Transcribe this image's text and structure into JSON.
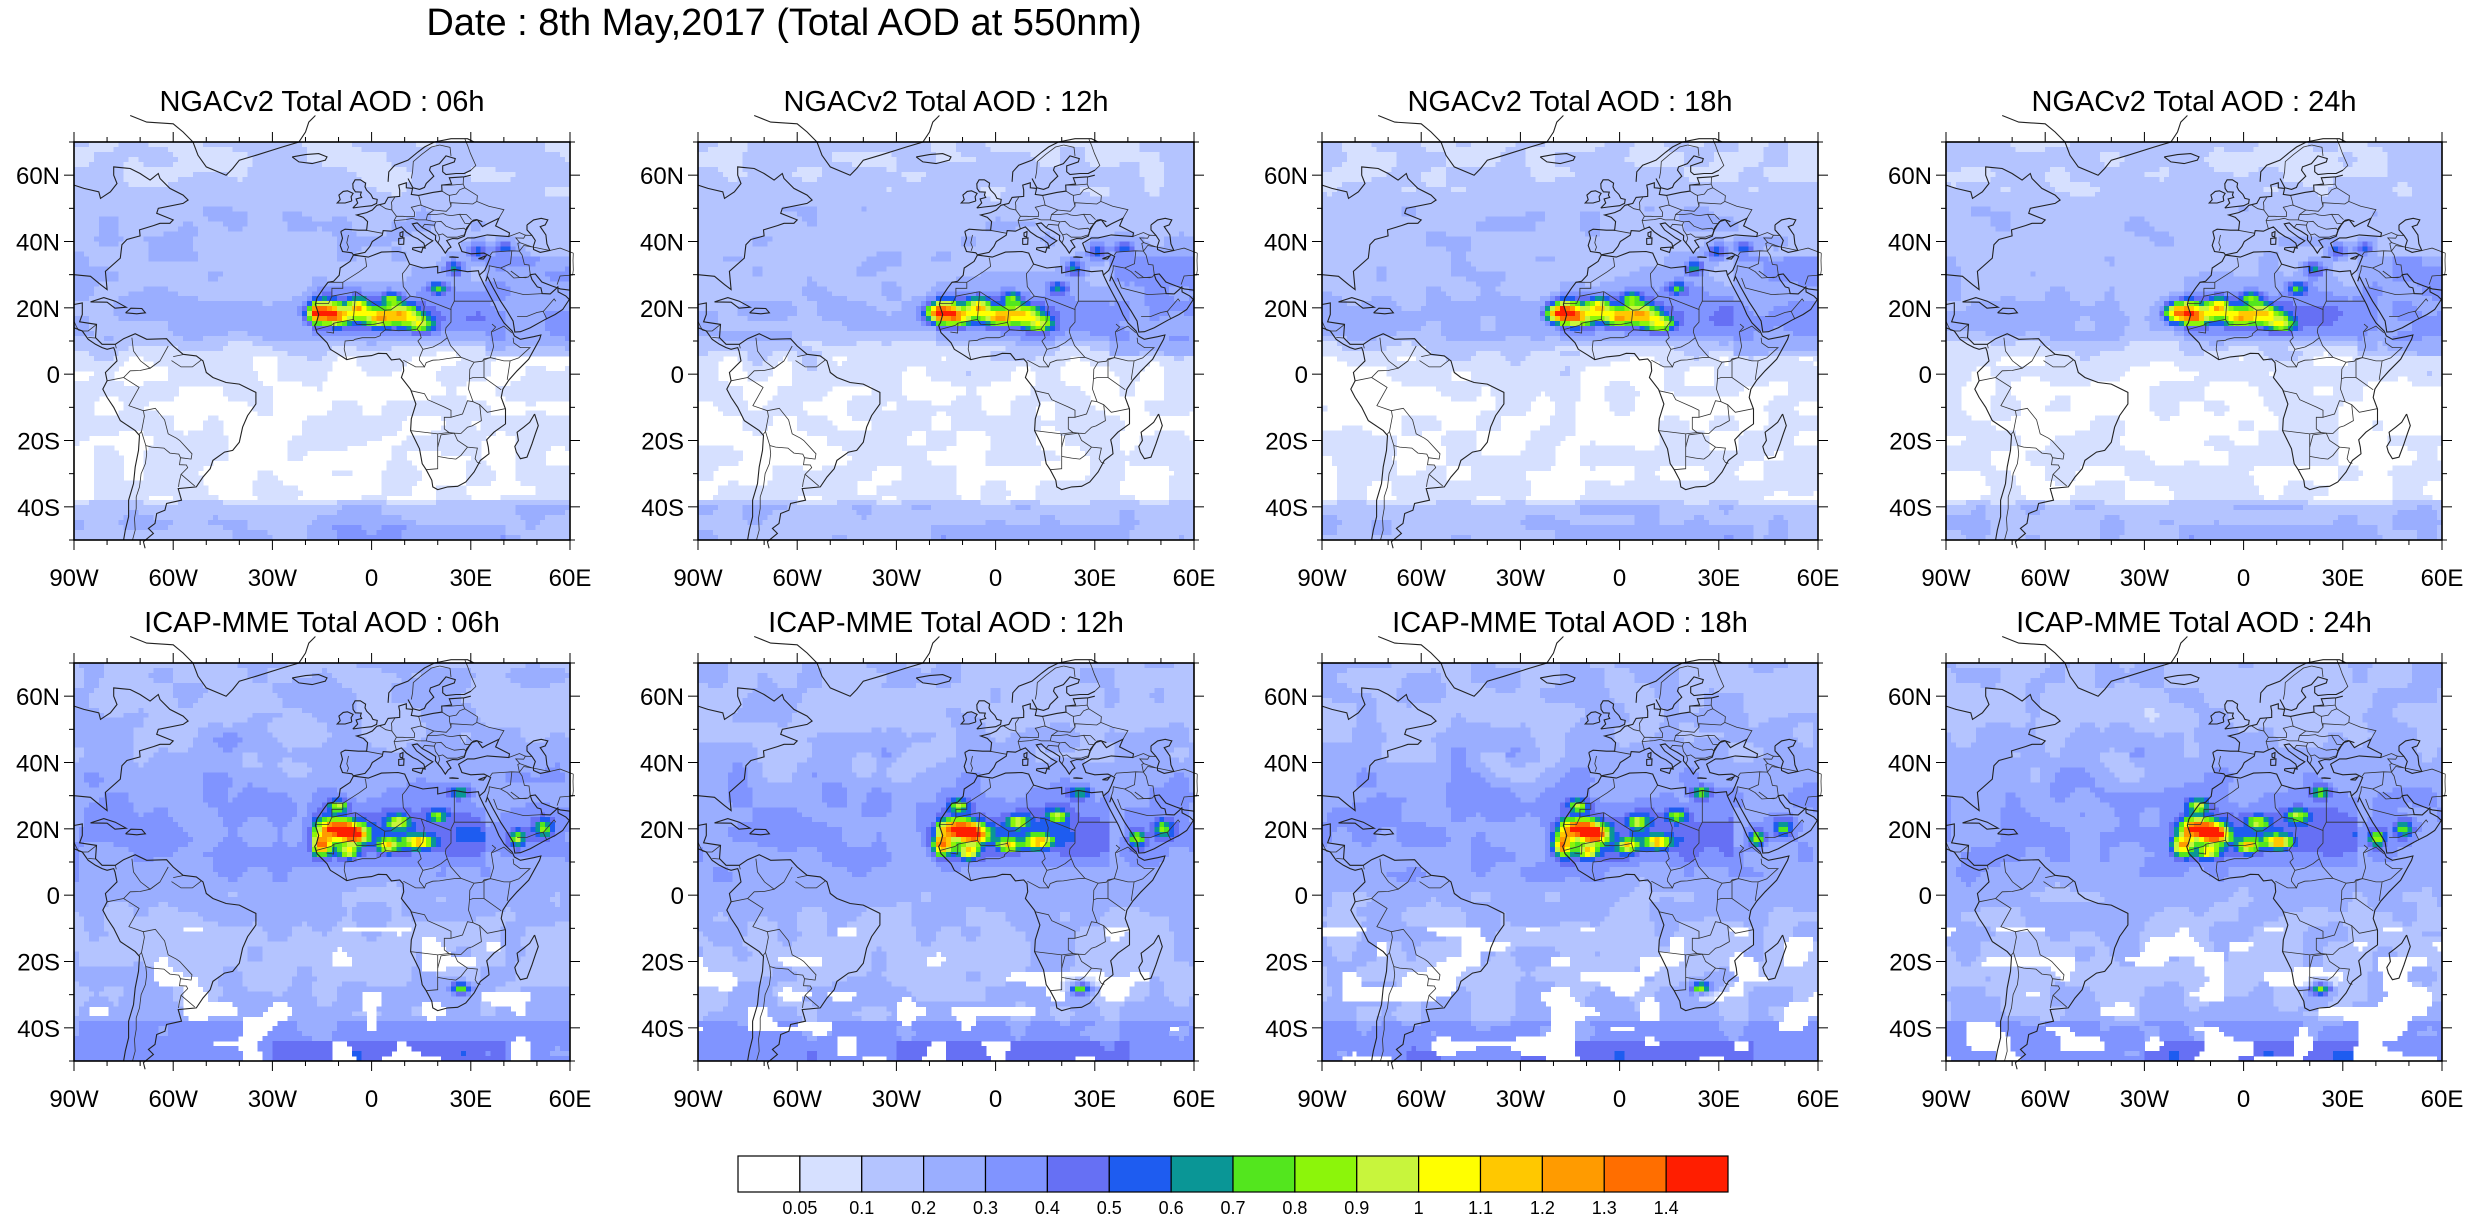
{
  "title": "Date : 8th May,2017 (Total AOD at 550nm)",
  "axes": {
    "lat_labels": [
      "60N",
      "40N",
      "20N",
      "0",
      "20S",
      "40S"
    ],
    "lon_labels": [
      "90W",
      "60W",
      "30W",
      "0",
      "30E",
      "60E"
    ]
  },
  "panels": [
    {
      "title": "NGACv2 Total AOD : 06h",
      "model": "NGACv2",
      "hour": 6
    },
    {
      "title": "NGACv2 Total AOD : 12h",
      "model": "NGACv2",
      "hour": 12
    },
    {
      "title": "NGACv2 Total AOD : 18h",
      "model": "NGACv2",
      "hour": 18
    },
    {
      "title": "NGACv2 Total AOD : 24h",
      "model": "NGACv2",
      "hour": 24
    },
    {
      "title": "ICAP-MME Total AOD : 06h",
      "model": "ICAP-MME",
      "hour": 6
    },
    {
      "title": "ICAP-MME Total AOD : 12h",
      "model": "ICAP-MME",
      "hour": 12
    },
    {
      "title": "ICAP-MME Total AOD : 18h",
      "model": "ICAP-MME",
      "hour": 18
    },
    {
      "title": "ICAP-MME Total AOD : 24h",
      "model": "ICAP-MME",
      "hour": 24
    }
  ],
  "colorbar": {
    "labels": [
      "0.05",
      "0.1",
      "0.2",
      "0.3",
      "0.4",
      "0.5",
      "0.6",
      "0.7",
      "0.8",
      "0.9",
      "1",
      "1.1",
      "1.2",
      "1.3",
      "1.4"
    ],
    "colors": [
      "#ffffff",
      "#d6e0ff",
      "#b4c4ff",
      "#9aaeff",
      "#8094ff",
      "#6670f4",
      "#1e5cf0",
      "#0a9696",
      "#53e61e",
      "#8cf50a",
      "#c8f53c",
      "#ffff00",
      "#ffc800",
      "#ff9b00",
      "#ff6e00",
      "#ff1e00"
    ]
  }
}
